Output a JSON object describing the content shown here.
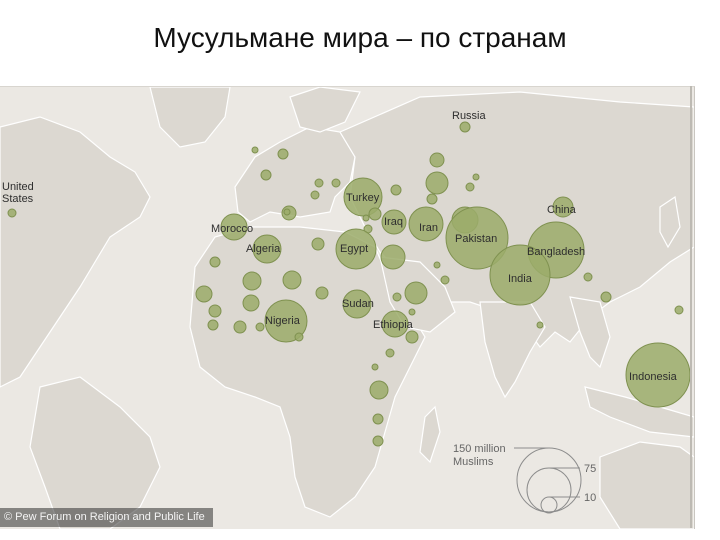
{
  "title": "Мусульмане мира – по странам",
  "credit": "© Pew Forum on Religion and Public Life",
  "colors": {
    "land": "#dcd8d1",
    "water": "#ebe8e3",
    "bubble_fill": "#9bab6a",
    "bubble_stroke": "#7f9150",
    "border": "#ffffff"
  },
  "countries": [
    {
      "name": "Russia",
      "label": "Russia"
    },
    {
      "name": "United States",
      "label": "United\nStates"
    },
    {
      "name": "Turkey",
      "label": "Turkey"
    },
    {
      "name": "China",
      "label": "China"
    },
    {
      "name": "Iraq",
      "label": "Iraq"
    },
    {
      "name": "Iran",
      "label": "Iran"
    },
    {
      "name": "Morocco",
      "label": "Morocco"
    },
    {
      "name": "Pakistan",
      "label": "Pakistan"
    },
    {
      "name": "Algeria",
      "label": "Algeria"
    },
    {
      "name": "Egypt",
      "label": "Egypt"
    },
    {
      "name": "Bangladesh",
      "label": "Bangladesh"
    },
    {
      "name": "India",
      "label": "India"
    },
    {
      "name": "Sudan",
      "label": "Sudan"
    },
    {
      "name": "Nigeria",
      "label": "Nigeria"
    },
    {
      "name": "Ethiopia",
      "label": "Ethiopia"
    },
    {
      "name": "Indonesia",
      "label": "Indonesia"
    }
  ],
  "legend": {
    "title_line1": "150 million",
    "title_line2": "Muslims",
    "mid_label": "75",
    "small_label": "10"
  }
}
